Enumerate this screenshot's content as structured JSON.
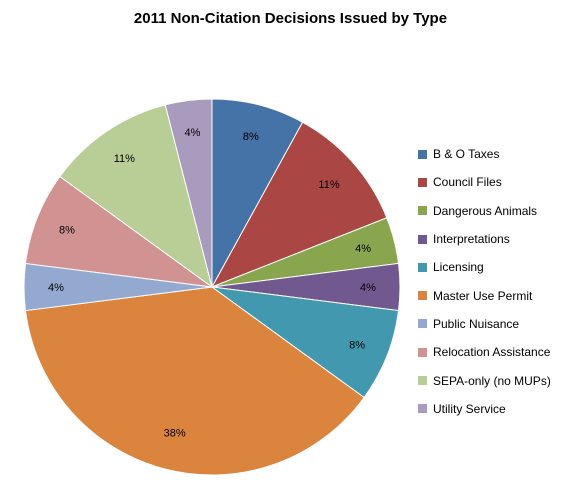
{
  "chart_data": {
    "type": "pie",
    "title": "2011 Non-Citation Decisions Issued by Type",
    "legend_position": "right",
    "start_angle_deg": 0,
    "direction": "clockwise",
    "slices": [
      {
        "name": "B & O Taxes",
        "value": 8,
        "label": "8%",
        "color": "#4572A7"
      },
      {
        "name": "Council Files",
        "value": 11,
        "label": "11%",
        "color": "#AA4643"
      },
      {
        "name": "Dangerous Animals",
        "value": 4,
        "label": "4%",
        "color": "#89A54E"
      },
      {
        "name": "Interpretations",
        "value": 4,
        "label": "4%",
        "color": "#71588F"
      },
      {
        "name": "Licensing",
        "value": 8,
        "label": "8%",
        "color": "#4198AF"
      },
      {
        "name": "Master Use Permit",
        "value": 38,
        "label": "38%",
        "color": "#DB843D"
      },
      {
        "name": "Public Nuisance",
        "value": 4,
        "label": "4%",
        "color": "#93A9CF"
      },
      {
        "name": "Relocation Assistance",
        "value": 8,
        "label": "8%",
        "color": "#D19392"
      },
      {
        "name": "SEPA-only (no MUPs)",
        "value": 11,
        "label": "11%",
        "color": "#B9CD96"
      },
      {
        "name": "Utility Service",
        "value": 4,
        "label": "4%",
        "color": "#A99BBD"
      }
    ]
  }
}
